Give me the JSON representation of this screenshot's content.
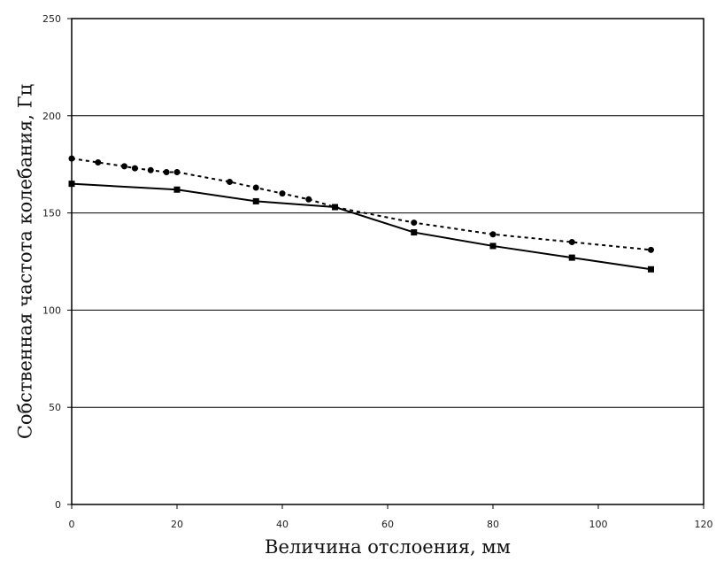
{
  "chart_data": {
    "type": "line",
    "title": "",
    "xlabel": "Величина отслоения, мм",
    "ylabel": "Собственная частота колебания, Гц",
    "xlim": [
      0,
      120
    ],
    "ylim": [
      0,
      250
    ],
    "xticks": [
      0,
      20,
      40,
      60,
      80,
      100,
      120
    ],
    "yticks": [
      0,
      50,
      100,
      150,
      200,
      250
    ],
    "grid": "horizontal",
    "series": [
      {
        "line": "dashed",
        "marker": "circle",
        "color": "#000000",
        "x": [
          0,
          5,
          10,
          12,
          15,
          18,
          20,
          30,
          35,
          40,
          45,
          50,
          65,
          80,
          95,
          110
        ],
        "y": [
          178,
          176,
          174,
          173,
          172,
          171,
          171,
          166,
          163,
          160,
          157,
          153,
          145,
          139,
          135,
          131
        ]
      },
      {
        "line": "solid",
        "marker": "square",
        "color": "#000000",
        "x": [
          0,
          20,
          35,
          50,
          65,
          80,
          95,
          110
        ],
        "y": [
          165,
          162,
          156,
          153,
          140,
          133,
          127,
          121
        ]
      }
    ]
  }
}
